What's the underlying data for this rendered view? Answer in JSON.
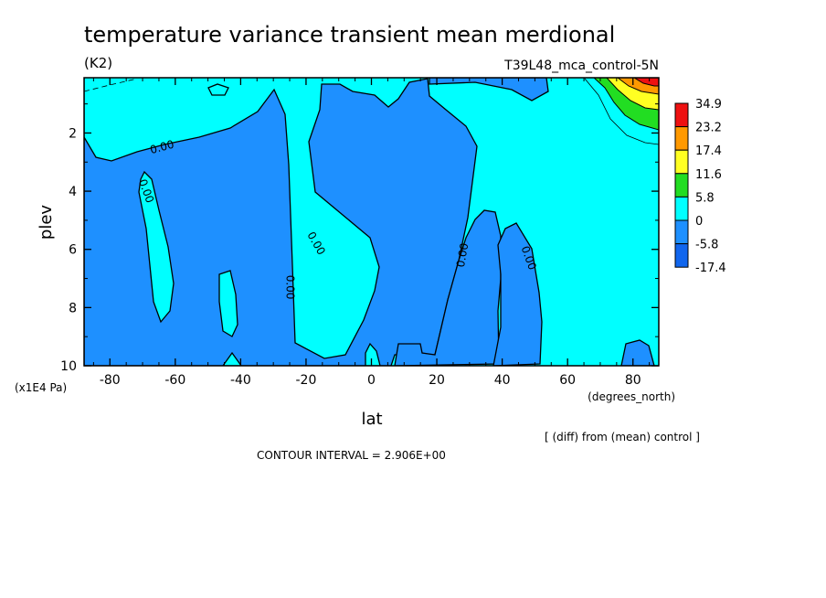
{
  "chart_data": {
    "type": "contour",
    "title": "temperature variance transient mean merdional",
    "units": "(K2)",
    "run_label": "T39L48_mca_control-5N",
    "xlabel": "lat",
    "x_units": "(degrees_north)",
    "ylabel": "plev",
    "y_units": "(x1E4 Pa)",
    "x_ticks": [
      -80,
      -60,
      -40,
      -20,
      0,
      20,
      40,
      60,
      80
    ],
    "x_tick_labels": [
      "-80",
      "-60",
      "-40",
      "-20",
      "0",
      "20",
      "40",
      "60",
      "80"
    ],
    "y_ticks": [
      2,
      4,
      6,
      8,
      10
    ],
    "y_tick_labels": [
      "2",
      "4",
      "6",
      "8",
      "10"
    ],
    "xlim": [
      -87.9,
      87.9
    ],
    "ylim": [
      10,
      0.1
    ],
    "contour_labels": [
      {
        "text": "0.00",
        "x": -69,
        "y": 4.0
      },
      {
        "text": "0.00",
        "x": -64,
        "y": 2.5
      },
      {
        "text": "0.00",
        "x": -25,
        "y": 7.3
      },
      {
        "text": "0.00",
        "x": -17,
        "y": 5.8
      },
      {
        "text": "0.00",
        "x": 28,
        "y": 6.2
      },
      {
        "text": "0.00",
        "x": 48,
        "y": 6.3
      }
    ],
    "colorbar": {
      "levels": [
        "34.9",
        "23.2",
        "17.4",
        "11.6",
        "5.8",
        "0",
        "-5.8",
        "-17.4"
      ],
      "colors": [
        "#ee1111",
        "#ff9900",
        "#ffff22",
        "#22dd22",
        "#00ffff",
        "#1e90ff",
        "#1166ee"
      ]
    },
    "note_diff": "[ (diff) from (mean) control ]",
    "contour_interval": "CONTOUR INTERVAL = 2.906E+00"
  }
}
